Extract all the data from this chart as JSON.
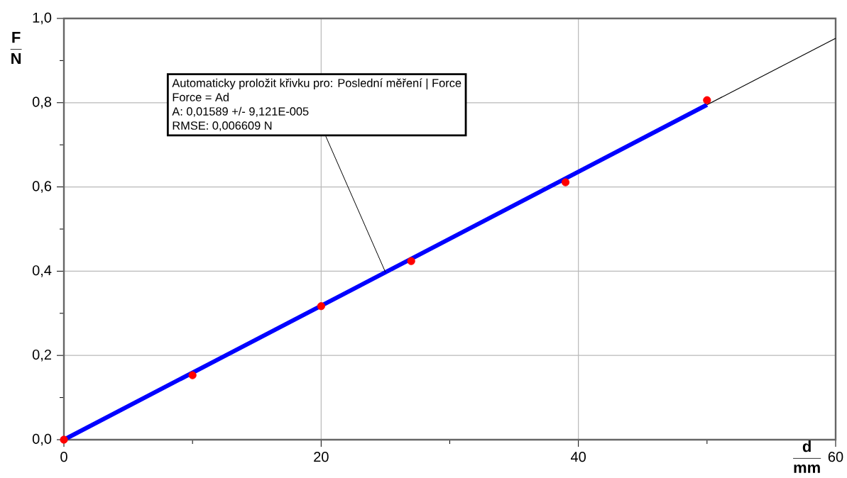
{
  "chart_data": {
    "type": "scatter",
    "xlabel": "\\frac{\\mathbf{d}}{\\mathbf{mm}}",
    "ylabel": "\\frac{\\mathbf{F}}{\\mathbf{N}}",
    "xlim": [
      0,
      60
    ],
    "ylim": [
      0,
      1.0
    ],
    "xticks": [
      0,
      {
        "value": 10,
        "label": null
      },
      20,
      {
        "value": 30,
        "label": null
      },
      40,
      {
        "value": 50,
        "label": null
      },
      60
    ],
    "yticks": [
      {
        "value": 0,
        "label": "0,0"
      },
      {
        "value": 0.1,
        "label": null
      },
      {
        "value": 0.2,
        "label": "0,2"
      },
      {
        "value": 0.3,
        "label": null
      },
      {
        "value": 0.4,
        "label": "0,4"
      },
      {
        "value": 0.5,
        "label": null
      },
      {
        "value": 0.6,
        "label": "0,6"
      },
      {
        "value": 0.7,
        "label": null
      },
      {
        "value": 0.8,
        "label": "0,8"
      },
      {
        "value": 0.9,
        "label": null
      },
      {
        "value": 1.0,
        "label": "1,0"
      }
    ],
    "grid": true,
    "series": [
      {
        "type": "line",
        "color": "#0000ff",
        "x": [
          0,
          50
        ],
        "values": [
          0,
          0.795
        ],
        "marker": "none"
      },
      {
        "type": "line",
        "color": "#000000",
        "x": [
          50,
          60
        ],
        "values": [
          0.795,
          0.953
        ],
        "marker": "none"
      },
      {
        "color": "#ff0000",
        "x": [
          0,
          10,
          20,
          27,
          39,
          50
        ],
        "values": [
          0,
          0.153,
          0.317,
          0.424,
          0.611,
          0.806
        ],
        "marker": "circle"
      }
    ],
    "annotations": [
      "Automaticky proložit křivku pro: Poslední měření | Force",
      "Force = Ad",
      "A: 0,01589 +/- 9,121E-005",
      "RMSE: 0,006609 N"
    ]
  }
}
